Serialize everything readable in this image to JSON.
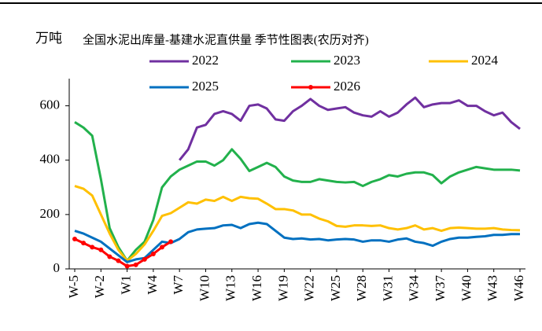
{
  "chart_data": {
    "type": "line",
    "title": "全国水泥出库量-基建水泥直供量 季节性图表(农历对齐)",
    "y_label": "万吨",
    "categories": [
      "W-5",
      null,
      null,
      "W-2",
      null,
      null,
      "W1",
      null,
      null,
      "W4",
      null,
      null,
      "W7",
      null,
      null,
      "W10",
      null,
      null,
      "W13",
      null,
      null,
      "W16",
      null,
      null,
      "W19",
      null,
      null,
      "W22",
      null,
      null,
      "W25",
      null,
      null,
      "W28",
      null,
      null,
      "W31",
      null,
      null,
      "W34",
      null,
      null,
      "W37",
      null,
      null,
      "W40",
      null,
      null,
      "W43",
      null,
      null,
      "W46"
    ],
    "ylim": [
      0,
      700
    ],
    "yticks": [
      0,
      200,
      400,
      600
    ],
    "series": [
      {
        "name": "2022",
        "color": "#7030a0",
        "values": [
          null,
          null,
          null,
          null,
          null,
          null,
          null,
          null,
          null,
          null,
          null,
          null,
          400,
          440,
          520,
          530,
          570,
          580,
          570,
          545,
          600,
          605,
          590,
          550,
          545,
          580,
          600,
          625,
          600,
          585,
          590,
          595,
          575,
          565,
          560,
          580,
          560,
          575,
          605,
          630,
          595,
          605,
          610,
          610,
          620,
          600,
          600,
          580,
          565,
          575,
          540,
          515
        ]
      },
      {
        "name": "2023",
        "color": "#22b14c",
        "values": [
          540,
          520,
          490,
          330,
          150,
          80,
          30,
          70,
          100,
          180,
          300,
          340,
          365,
          380,
          395,
          395,
          380,
          400,
          440,
          405,
          360,
          375,
          390,
          375,
          340,
          325,
          320,
          320,
          330,
          325,
          320,
          318,
          320,
          305,
          320,
          330,
          345,
          340,
          350,
          355,
          355,
          345,
          315,
          340,
          355,
          365,
          375,
          370,
          365,
          365,
          365,
          362
        ]
      },
      {
        "name": "2024",
        "color": "#ffc000",
        "values": [
          305,
          295,
          270,
          200,
          130,
          70,
          30,
          55,
          90,
          140,
          195,
          205,
          225,
          245,
          240,
          255,
          250,
          265,
          250,
          265,
          260,
          258,
          240,
          220,
          220,
          215,
          200,
          200,
          185,
          175,
          158,
          155,
          160,
          160,
          158,
          160,
          150,
          145,
          150,
          160,
          145,
          150,
          140,
          150,
          152,
          150,
          148,
          148,
          150,
          145,
          143,
          142
        ]
      },
      {
        "name": "2025",
        "color": "#0070c0",
        "values": [
          140,
          130,
          115,
          100,
          75,
          50,
          25,
          35,
          40,
          70,
          100,
          95,
          110,
          135,
          145,
          148,
          150,
          160,
          162,
          150,
          165,
          170,
          165,
          140,
          115,
          110,
          112,
          108,
          110,
          105,
          108,
          110,
          108,
          100,
          105,
          105,
          100,
          108,
          112,
          100,
          95,
          85,
          100,
          110,
          115,
          115,
          118,
          120,
          125,
          125,
          128,
          128
        ]
      },
      {
        "name": "2026",
        "color": "#ff0000",
        "markers": true,
        "values": [
          110,
          95,
          80,
          70,
          45,
          30,
          10,
          15,
          35,
          55,
          80,
          100,
          null,
          null,
          null,
          null,
          null,
          null,
          null,
          null,
          null,
          null,
          null,
          null,
          null,
          null,
          null,
          null,
          null,
          null,
          null,
          null,
          null,
          null,
          null,
          null,
          null,
          null,
          null,
          null,
          null,
          null,
          null,
          null,
          null,
          null,
          null,
          null,
          null,
          null,
          null,
          null
        ]
      }
    ]
  }
}
